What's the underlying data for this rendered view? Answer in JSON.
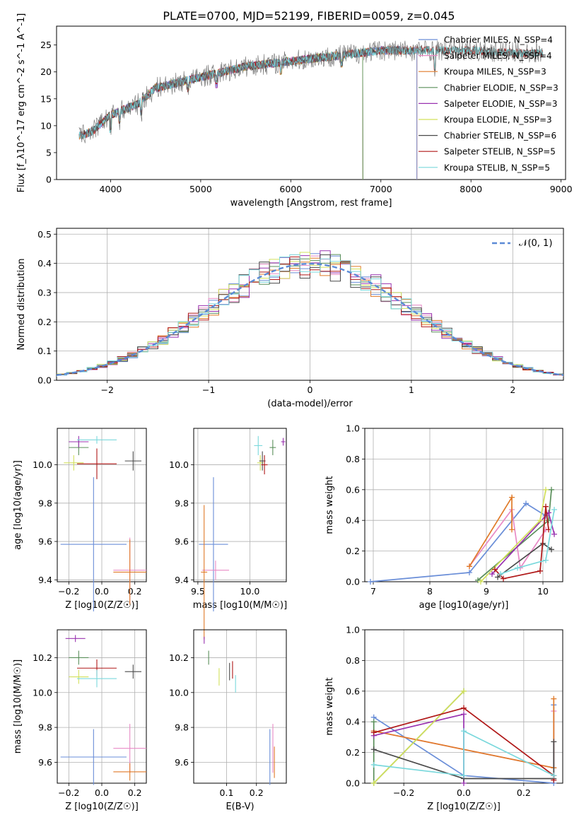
{
  "title": "PLATE=0700, MJD=52199, FIBERID=0059, z=0.045",
  "colors": {
    "chabrier_miles": "#6a8ed8",
    "salpeter_miles": "#e88ac6",
    "kroupa_miles": "#e07a28",
    "chabrier_elodie": "#5a8f5a",
    "salpeter_elodie": "#9932b0",
    "kroupa_elodie": "#d2e05c",
    "chabrier_stelib": "#4a4a4a",
    "salpeter_stelib": "#b01818",
    "kroupa_stelib": "#7ad8dc"
  },
  "chart_data": [
    {
      "id": "spectrum",
      "type": "line",
      "title": "PLATE=0700, MJD=52199, FIBERID=0059, z=0.045",
      "xlabel": "wavelength [Angstrom, rest frame]",
      "ylabel": "Flux [f_λ10^-17 erg cm^-2 s^-1 A^-1]",
      "xlim": [
        3400,
        9050
      ],
      "ylim": [
        0,
        28.5
      ],
      "xticks": [
        4000,
        5000,
        6000,
        7000,
        8000,
        9000
      ],
      "yticks": [
        0,
        5,
        10,
        15,
        20,
        25
      ],
      "legend_position": "top-right",
      "legend": [
        {
          "key": "chabrier_miles",
          "label": "Chabrier MILES, N_SSP=4"
        },
        {
          "key": "salpeter_miles",
          "label": "Salpeter MILES, N_SSP=4"
        },
        {
          "key": "kroupa_miles",
          "label": "Kroupa MILES, N_SSP=3"
        },
        {
          "key": "chabrier_elodie",
          "label": "Chabrier ELODIE, N_SSP=3"
        },
        {
          "key": "salpeter_elodie",
          "label": "Salpeter ELODIE, N_SSP=3"
        },
        {
          "key": "kroupa_elodie",
          "label": "Kroupa ELODIE, N_SSP=3"
        },
        {
          "key": "chabrier_stelib",
          "label": "Chabrier STELIB, N_SSP=6"
        },
        {
          "key": "salpeter_stelib",
          "label": "Salpeter STELIB, N_SSP=5"
        },
        {
          "key": "kroupa_stelib",
          "label": "Kroupa STELIB, N_SSP=5"
        }
      ],
      "continuum": [
        [
          3650,
          8
        ],
        [
          3800,
          9
        ],
        [
          4000,
          12
        ],
        [
          4300,
          14
        ],
        [
          4500,
          17
        ],
        [
          5000,
          19
        ],
        [
          5500,
          21
        ],
        [
          6000,
          22
        ],
        [
          6500,
          23
        ],
        [
          7000,
          24
        ],
        [
          7500,
          24
        ],
        [
          8000,
          24
        ],
        [
          8500,
          23.5
        ],
        [
          8800,
          23.5
        ]
      ],
      "model_ranges": {
        "chabrier_miles": [
          3650,
          7400
        ],
        "salpeter_miles": [
          3650,
          7400
        ],
        "kroupa_miles": [
          3650,
          7400
        ],
        "chabrier_elodie": [
          3900,
          6800
        ],
        "salpeter_elodie": [
          3900,
          6800
        ],
        "kroupa_elodie": [
          3900,
          6800
        ],
        "chabrier_stelib": [
          3650,
          8800
        ],
        "salpeter_stelib": [
          3650,
          8800
        ],
        "kroupa_stelib": [
          3650,
          8800
        ]
      }
    },
    {
      "id": "residuals",
      "type": "line",
      "xlabel": "(data-model)/error",
      "ylabel": "Normed distribution",
      "xlim": [
        -2.5,
        2.5
      ],
      "ylim": [
        0,
        0.52
      ],
      "xticks": [
        -2,
        -1,
        0,
        1,
        2
      ],
      "yticks": [
        0.0,
        0.1,
        0.2,
        0.3,
        0.4,
        0.5
      ],
      "legend": [
        {
          "label": "𝒩(0, 1)",
          "style": "dashed"
        }
      ],
      "legend_position": "top-right",
      "bin_width": 0.1,
      "reference_curve": "N(0,1)"
    },
    {
      "id": "age_vs_Z",
      "type": "scatter",
      "xlabel": "Z [log10(Z/Z☉)]",
      "ylabel": "age  [log10(age/yr)]",
      "xlim": [
        -0.27,
        0.27
      ],
      "ylim": [
        9.39,
        10.19
      ],
      "xticks": [
        -0.2,
        0.0,
        0.2
      ],
      "yticks": [
        9.4,
        9.6,
        9.8,
        10.0
      ],
      "points": [
        {
          "key": "chabrier_miles",
          "x": -0.05,
          "y": 9.585,
          "xerr": 0.2,
          "yerr": 0.35
        },
        {
          "key": "salpeter_miles",
          "x": 0.17,
          "y": 9.45,
          "xerr": 0.1,
          "yerr": 0.17
        },
        {
          "key": "kroupa_miles",
          "x": 0.17,
          "y": 9.44,
          "xerr": 0.1,
          "yerr": 0.17
        },
        {
          "key": "chabrier_elodie",
          "x": -0.14,
          "y": 10.09,
          "xerr": 0.06,
          "yerr": 0.04
        },
        {
          "key": "salpeter_elodie",
          "x": -0.14,
          "y": 10.12,
          "xerr": 0.06,
          "yerr": 0.03
        },
        {
          "key": "kroupa_elodie",
          "x": -0.17,
          "y": 10.01,
          "xerr": 0.06,
          "yerr": 0.04
        },
        {
          "key": "chabrier_stelib",
          "x": 0.19,
          "y": 10.02,
          "xerr": 0.05,
          "yerr": 0.05
        },
        {
          "key": "salpeter_stelib",
          "x": -0.03,
          "y": 10.005,
          "xerr": 0.12,
          "yerr": 0.08
        },
        {
          "key": "kroupa_stelib",
          "x": -0.03,
          "y": 10.13,
          "xerr": 0.12,
          "yerr": 0.02
        }
      ]
    },
    {
      "id": "age_vs_mass",
      "type": "scatter",
      "xlabel": "mass [log10(M/M☉)]",
      "xlim": [
        9.46,
        10.35
      ],
      "ylim": [
        9.39,
        10.19
      ],
      "xticks": [
        9.5,
        10.0
      ],
      "yticks": [
        9.4,
        9.6,
        9.8,
        10.0
      ],
      "points": [
        {
          "key": "chabrier_miles",
          "x": 9.65,
          "y": 9.585,
          "xerr": 0.14,
          "yerr": 0.35
        },
        {
          "key": "salpeter_miles",
          "x": 9.67,
          "y": 9.45,
          "xerr": 0.13,
          "yerr": 0.05
        },
        {
          "key": "kroupa_miles",
          "x": 9.56,
          "y": 9.44,
          "xerr": 0.03,
          "yerr": 0.35
        },
        {
          "key": "chabrier_elodie",
          "x": 10.22,
          "y": 10.09,
          "xerr": 0.03,
          "yerr": 0.04
        },
        {
          "key": "salpeter_elodie",
          "x": 10.32,
          "y": 10.12,
          "xerr": 0.02,
          "yerr": 0.02
        },
        {
          "key": "kroupa_elodie",
          "x": 10.1,
          "y": 10.01,
          "xerr": 0.03,
          "yerr": 0.04
        },
        {
          "key": "chabrier_stelib",
          "x": 10.12,
          "y": 10.02,
          "xerr": 0.03,
          "yerr": 0.05
        },
        {
          "key": "salpeter_stelib",
          "x": 10.14,
          "y": 10.0,
          "xerr": 0.03,
          "yerr": 0.05
        },
        {
          "key": "kroupa_stelib",
          "x": 10.08,
          "y": 10.1,
          "xerr": 0.04,
          "yerr": 0.05
        }
      ]
    },
    {
      "id": "massweight_vs_age",
      "type": "line",
      "xlabel": "age  [log10(age/yr)]",
      "ylabel": "mass weight",
      "xlim": [
        6.85,
        10.35
      ],
      "ylim": [
        0,
        1.0
      ],
      "xticks": [
        7,
        8,
        9,
        10
      ],
      "yticks": [
        0.0,
        0.2,
        0.4,
        0.6,
        0.8,
        1.0
      ],
      "series": [
        {
          "key": "chabrier_miles",
          "x": [
            6.95,
            8.7,
            9.7,
            10.05
          ],
          "y": [
            0.0,
            0.06,
            0.51,
            0.43
          ]
        },
        {
          "key": "salpeter_miles",
          "x": [
            8.7,
            9.45,
            9.6,
            10.05
          ],
          "y": [
            0.1,
            0.47,
            0.09,
            0.34
          ]
        },
        {
          "key": "kroupa_miles",
          "x": [
            8.7,
            9.45,
            9.45
          ],
          "y": [
            0.1,
            0.55,
            0.34
          ]
        },
        {
          "key": "chabrier_elodie",
          "x": [
            8.85,
            10.1,
            10.15
          ],
          "y": [
            0.01,
            0.4,
            0.6
          ]
        },
        {
          "key": "salpeter_elodie",
          "x": [
            9.1,
            10.1,
            10.2
          ],
          "y": [
            0.05,
            0.45,
            0.31
          ]
        },
        {
          "key": "kroupa_elodie",
          "x": [
            8.9,
            9.95,
            10.05
          ],
          "y": [
            0.0,
            0.4,
            0.6
          ]
        },
        {
          "key": "chabrier_stelib",
          "x": [
            9.2,
            10.0,
            10.15
          ],
          "y": [
            0.03,
            0.25,
            0.21
          ]
        },
        {
          "key": "salpeter_stelib",
          "x": [
            9.15,
            9.3,
            9.95,
            10.05,
            10.1
          ],
          "y": [
            0.08,
            0.02,
            0.07,
            0.49,
            0.34
          ]
        },
        {
          "key": "kroupa_stelib",
          "x": [
            9.25,
            9.55,
            10.05,
            10.2
          ],
          "y": [
            0.05,
            0.09,
            0.14,
            0.47
          ]
        }
      ]
    },
    {
      "id": "mass_vs_Z",
      "type": "scatter",
      "xlabel": "Z [log10(Z/Z☉)]",
      "ylabel": "mass [log10(M/M☉)]",
      "xlim": [
        -0.27,
        0.27
      ],
      "ylim": [
        9.48,
        10.36
      ],
      "xticks": [
        -0.2,
        0.0,
        0.2
      ],
      "yticks": [
        9.6,
        9.8,
        10.0,
        10.2
      ],
      "points": [
        {
          "key": "chabrier_miles",
          "x": -0.05,
          "y": 9.63,
          "xerr": 0.2,
          "yerr": 0.16
        },
        {
          "key": "salpeter_miles",
          "x": 0.17,
          "y": 9.68,
          "xerr": 0.1,
          "yerr": 0.14
        },
        {
          "key": "kroupa_miles",
          "x": 0.17,
          "y": 9.545,
          "xerr": 0.1,
          "yerr": 0.05
        },
        {
          "key": "chabrier_elodie",
          "x": -0.14,
          "y": 10.2,
          "xerr": 0.06,
          "yerr": 0.04
        },
        {
          "key": "salpeter_elodie",
          "x": -0.16,
          "y": 10.31,
          "xerr": 0.06,
          "yerr": 0.02
        },
        {
          "key": "kroupa_elodie",
          "x": -0.14,
          "y": 10.09,
          "xerr": 0.06,
          "yerr": 0.04
        },
        {
          "key": "chabrier_stelib",
          "x": 0.19,
          "y": 10.12,
          "xerr": 0.05,
          "yerr": 0.04
        },
        {
          "key": "salpeter_stelib",
          "x": -0.03,
          "y": 10.14,
          "xerr": 0.12,
          "yerr": 0.05
        },
        {
          "key": "kroupa_stelib",
          "x": -0.03,
          "y": 10.08,
          "xerr": 0.12,
          "yerr": 0.05
        }
      ]
    },
    {
      "id": "mass_vs_ebv",
      "type": "scatter",
      "xlabel": "E(B-V)",
      "xlim": [
        -0.01,
        0.3
      ],
      "ylim": [
        9.48,
        10.36
      ],
      "xticks": [
        0.1,
        0.2
      ],
      "yticks": [
        9.6,
        9.8,
        10.0,
        10.2
      ],
      "points": [
        {
          "key": "chabrier_miles",
          "x": 0.245,
          "y": 9.63,
          "xerr": 0,
          "yerr": 0.16
        },
        {
          "key": "salpeter_miles",
          "x": 0.255,
          "y": 9.68,
          "xerr": 0,
          "yerr": 0.14
        },
        {
          "key": "kroupa_miles",
          "x": 0.26,
          "y": 9.6,
          "xerr": 0,
          "yerr": 0.09
        },
        {
          "key": "chabrier_elodie",
          "x": 0.04,
          "y": 10.2,
          "xerr": 0,
          "yerr": 0.04
        },
        {
          "key": "salpeter_elodie",
          "x": 0.025,
          "y": 10.3,
          "xerr": 0,
          "yerr": 0.02
        },
        {
          "key": "kroupa_elodie",
          "x": 0.075,
          "y": 10.09,
          "xerr": 0,
          "yerr": 0.05
        },
        {
          "key": "chabrier_stelib",
          "x": 0.11,
          "y": 10.12,
          "xerr": 0,
          "yerr": 0.05
        },
        {
          "key": "salpeter_stelib",
          "x": 0.12,
          "y": 10.13,
          "xerr": 0,
          "yerr": 0.05
        },
        {
          "key": "kroupa_stelib",
          "x": 0.13,
          "y": 10.05,
          "xerr": 0,
          "yerr": 0.05
        }
      ]
    },
    {
      "id": "massweight_vs_Z",
      "type": "line",
      "xlabel": "Z [log10(Z/Z☉)]",
      "ylabel": "mass weight",
      "xlim": [
        -0.33,
        0.33
      ],
      "ylim": [
        0,
        1.0
      ],
      "xticks": [
        -0.2,
        0.0,
        0.2
      ],
      "yticks": [
        0.0,
        0.2,
        0.4,
        0.6,
        0.8,
        1.0
      ],
      "series": [
        {
          "key": "chabrier_miles",
          "x": [
            -0.3,
            0.0,
            0.3,
            0.3
          ],
          "y": [
            0.43,
            0.05,
            0.0,
            0.51
          ]
        },
        {
          "key": "salpeter_miles",
          "x": [
            -0.3,
            0.3,
            0.3
          ],
          "y": [
            0.34,
            0.1,
            0.47
          ]
        },
        {
          "key": "kroupa_miles",
          "x": [
            -0.3,
            0.3,
            0.3
          ],
          "y": [
            0.34,
            0.1,
            0.55
          ]
        },
        {
          "key": "chabrier_elodie",
          "x": [
            -0.3,
            -0.3,
            0.0
          ],
          "y": [
            0.4,
            0.0,
            0.6
          ]
        },
        {
          "key": "salpeter_elodie",
          "x": [
            -0.3,
            0.0,
            0.0
          ],
          "y": [
            0.31,
            0.45,
            0.0
          ]
        },
        {
          "key": "kroupa_elodie",
          "x": [
            -0.3,
            0.0
          ],
          "y": [
            0.0,
            0.6
          ]
        },
        {
          "key": "chabrier_stelib",
          "x": [
            -0.3,
            0.0,
            0.3,
            0.3
          ],
          "y": [
            0.22,
            0.03,
            0.03,
            0.27
          ]
        },
        {
          "key": "salpeter_stelib",
          "x": [
            -0.3,
            0.0,
            0.3,
            0.3
          ],
          "y": [
            0.33,
            0.49,
            0.05,
            0.02
          ]
        },
        {
          "key": "kroupa_stelib",
          "x": [
            -0.3,
            0.0,
            0.0,
            0.3
          ],
          "y": [
            0.12,
            0.05,
            0.34,
            0.05
          ]
        }
      ]
    }
  ]
}
